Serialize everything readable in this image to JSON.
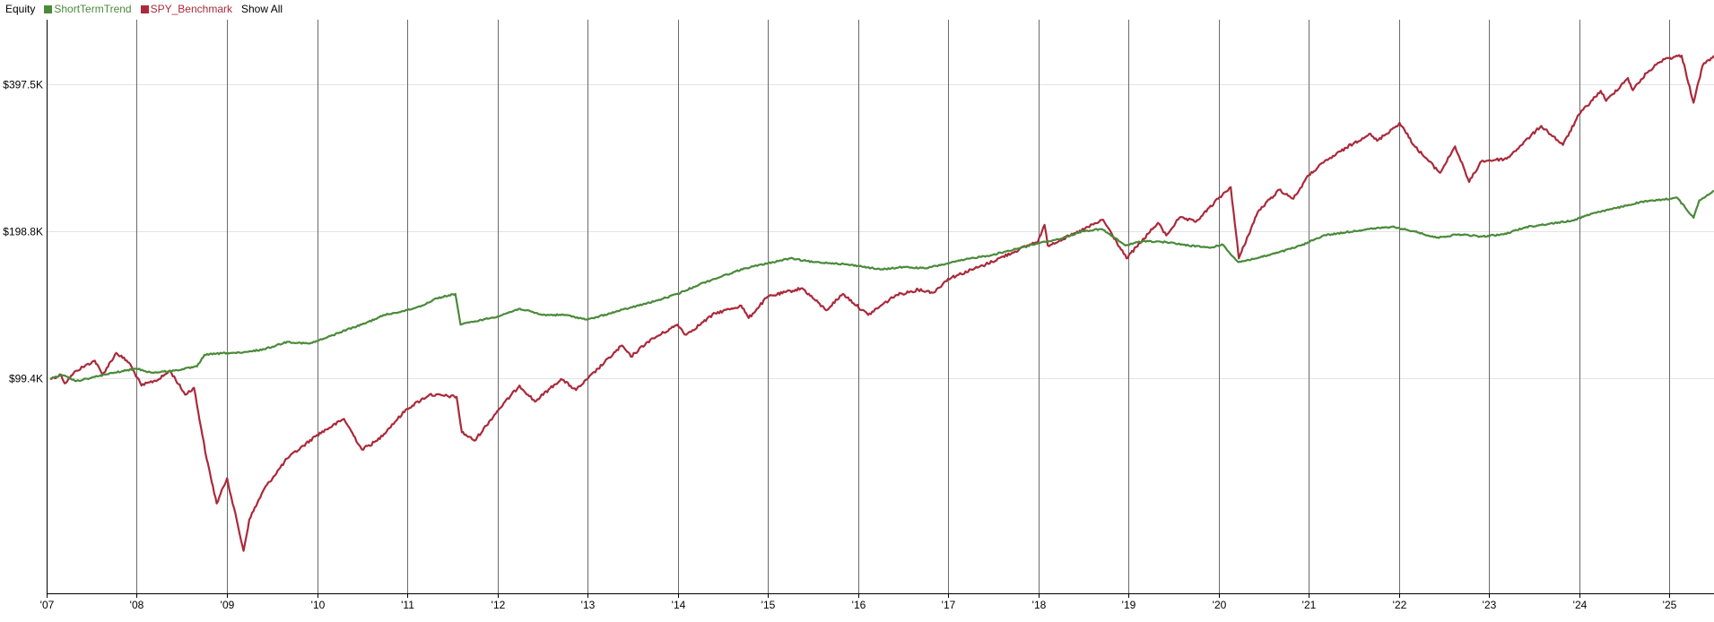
{
  "header": {
    "equity_label": "Equity",
    "show_all_label": "Show All"
  },
  "chart_data": {
    "type": "line",
    "x_scale": "time",
    "y_scale": "log",
    "xlim": [
      "2007-01-01",
      "2025-06-30"
    ],
    "ylim": [
      36000,
      540000
    ],
    "grid": {
      "vertical": true,
      "horizontal": true
    },
    "legend_position": "top-left",
    "x_tick_values": [
      "2007-01-01",
      "2008-01-01",
      "2009-01-01",
      "2010-01-01",
      "2011-01-01",
      "2012-01-01",
      "2013-01-01",
      "2014-01-01",
      "2015-01-01",
      "2016-01-01",
      "2017-01-01",
      "2018-01-01",
      "2019-01-01",
      "2020-01-01",
      "2021-01-01",
      "2022-01-01",
      "2023-01-01",
      "2024-01-01",
      "2025-01-01"
    ],
    "x_tick_labels": [
      "'07",
      "'08",
      "'09",
      "'10",
      "'11",
      "'12",
      "'13",
      "'14",
      "'15",
      "'16",
      "'17",
      "'18",
      "'19",
      "'20",
      "'21",
      "'22",
      "'23",
      "'24",
      "'25"
    ],
    "y_tick_values": [
      99400,
      198800,
      397500
    ],
    "y_tick_labels": [
      "$99.4K",
      "$198.8K",
      "$397.5K"
    ],
    "series": [
      {
        "name": "ShortTermTrend",
        "color": "#4a8a3a",
        "points": [
          [
            "2007-01-15",
            99000
          ],
          [
            "2007-03-01",
            101000
          ],
          [
            "2007-05-01",
            98000
          ],
          [
            "2007-07-15",
            100000
          ],
          [
            "2007-10-01",
            102000
          ],
          [
            "2008-01-01",
            104000
          ],
          [
            "2008-03-01",
            102000
          ],
          [
            "2008-06-01",
            103000
          ],
          [
            "2008-09-01",
            105000
          ],
          [
            "2008-10-01",
            111000
          ],
          [
            "2009-01-01",
            112000
          ],
          [
            "2009-03-01",
            112000
          ],
          [
            "2009-06-01",
            114000
          ],
          [
            "2009-09-01",
            118000
          ],
          [
            "2009-12-01",
            117000
          ],
          [
            "2010-02-01",
            120000
          ],
          [
            "2010-05-01",
            125000
          ],
          [
            "2010-07-01",
            128000
          ],
          [
            "2010-10-01",
            134000
          ],
          [
            "2011-01-01",
            137000
          ],
          [
            "2011-03-01",
            140000
          ],
          [
            "2011-05-01",
            145000
          ],
          [
            "2011-07-15",
            148000
          ],
          [
            "2011-08-05",
            128000
          ],
          [
            "2011-10-01",
            130000
          ],
          [
            "2012-01-01",
            133000
          ],
          [
            "2012-04-01",
            138000
          ],
          [
            "2012-07-01",
            134000
          ],
          [
            "2012-10-01",
            134000
          ],
          [
            "2013-01-01",
            131000
          ],
          [
            "2013-04-01",
            135000
          ],
          [
            "2013-07-01",
            139000
          ],
          [
            "2013-10-01",
            143000
          ],
          [
            "2014-01-01",
            148000
          ],
          [
            "2014-04-01",
            155000
          ],
          [
            "2014-07-01",
            161000
          ],
          [
            "2014-10-01",
            167000
          ],
          [
            "2015-01-01",
            171000
          ],
          [
            "2015-04-01",
            175000
          ],
          [
            "2015-07-01",
            172000
          ],
          [
            "2015-10-01",
            171000
          ],
          [
            "2016-01-01",
            169000
          ],
          [
            "2016-04-01",
            166000
          ],
          [
            "2016-07-01",
            168000
          ],
          [
            "2016-10-01",
            167000
          ],
          [
            "2017-01-01",
            171000
          ],
          [
            "2017-04-01",
            175000
          ],
          [
            "2017-07-01",
            178000
          ],
          [
            "2017-10-01",
            183000
          ],
          [
            "2018-01-01",
            188000
          ],
          [
            "2018-04-01",
            192000
          ],
          [
            "2018-07-01",
            199000
          ],
          [
            "2018-09-15",
            201000
          ],
          [
            "2018-12-20",
            186000
          ],
          [
            "2019-03-01",
            190000
          ],
          [
            "2019-06-01",
            189000
          ],
          [
            "2019-09-01",
            186000
          ],
          [
            "2019-12-01",
            184000
          ],
          [
            "2020-01-15",
            187000
          ],
          [
            "2020-03-20",
            172000
          ],
          [
            "2020-06-01",
            175000
          ],
          [
            "2020-09-01",
            180000
          ],
          [
            "2020-12-01",
            186000
          ],
          [
            "2021-03-01",
            195000
          ],
          [
            "2021-06-01",
            198000
          ],
          [
            "2021-09-01",
            201000
          ],
          [
            "2021-12-01",
            203000
          ],
          [
            "2022-03-01",
            199000
          ],
          [
            "2022-06-01",
            193000
          ],
          [
            "2022-09-01",
            196000
          ],
          [
            "2022-12-01",
            194000
          ],
          [
            "2023-03-01",
            196000
          ],
          [
            "2023-06-01",
            203000
          ],
          [
            "2023-09-01",
            206000
          ],
          [
            "2023-12-01",
            209000
          ],
          [
            "2024-03-01",
            217000
          ],
          [
            "2024-06-01",
            222000
          ],
          [
            "2024-09-01",
            228000
          ],
          [
            "2024-12-01",
            231000
          ],
          [
            "2025-02-01",
            233000
          ],
          [
            "2025-04-08",
            212000
          ],
          [
            "2025-05-01",
            230000
          ],
          [
            "2025-06-30",
            241000
          ]
        ]
      },
      {
        "name": "SPY_Benchmark",
        "color": "#a92a3a",
        "points": [
          [
            "2007-01-15",
            99000
          ],
          [
            "2007-03-01",
            101000
          ],
          [
            "2007-03-15",
            97000
          ],
          [
            "2007-05-01",
            103000
          ],
          [
            "2007-07-15",
            108000
          ],
          [
            "2007-08-15",
            101000
          ],
          [
            "2007-10-10",
            112000
          ],
          [
            "2007-12-01",
            107000
          ],
          [
            "2008-01-20",
            96000
          ],
          [
            "2008-04-01",
            99000
          ],
          [
            "2008-05-15",
            103000
          ],
          [
            "2008-07-15",
            92000
          ],
          [
            "2008-08-20",
            95000
          ],
          [
            "2008-10-10",
            68000
          ],
          [
            "2008-11-20",
            55000
          ],
          [
            "2009-01-01",
            62000
          ],
          [
            "2009-03-09",
            44000
          ],
          [
            "2009-04-01",
            51000
          ],
          [
            "2009-06-01",
            59000
          ],
          [
            "2009-09-01",
            68000
          ],
          [
            "2009-12-31",
            76000
          ],
          [
            "2010-04-20",
            82000
          ],
          [
            "2010-07-01",
            71000
          ],
          [
            "2010-09-01",
            74000
          ],
          [
            "2010-12-31",
            86000
          ],
          [
            "2011-04-01",
            92000
          ],
          [
            "2011-07-20",
            91000
          ],
          [
            "2011-08-10",
            77000
          ],
          [
            "2011-10-01",
            74000
          ],
          [
            "2011-12-31",
            85000
          ],
          [
            "2012-03-31",
            96000
          ],
          [
            "2012-06-01",
            89000
          ],
          [
            "2012-09-15",
            99000
          ],
          [
            "2012-11-15",
            94000
          ],
          [
            "2012-12-31",
            99000
          ],
          [
            "2013-05-20",
            116000
          ],
          [
            "2013-06-25",
            110000
          ],
          [
            "2013-09-01",
            118000
          ],
          [
            "2013-12-31",
            128000
          ],
          [
            "2014-02-03",
            122000
          ],
          [
            "2014-06-01",
            135000
          ],
          [
            "2014-09-15",
            140000
          ],
          [
            "2014-10-15",
            132000
          ],
          [
            "2014-12-31",
            146000
          ],
          [
            "2015-05-20",
            152000
          ],
          [
            "2015-08-25",
            137000
          ],
          [
            "2015-11-01",
            148000
          ],
          [
            "2016-02-11",
            134000
          ],
          [
            "2016-06-01",
            147000
          ],
          [
            "2016-09-01",
            151000
          ],
          [
            "2016-11-04",
            149000
          ],
          [
            "2016-12-31",
            159000
          ],
          [
            "2017-06-01",
            170000
          ],
          [
            "2017-12-31",
            190000
          ],
          [
            "2018-01-26",
            205000
          ],
          [
            "2018-02-08",
            186000
          ],
          [
            "2018-06-01",
            197000
          ],
          [
            "2018-09-20",
            210000
          ],
          [
            "2018-12-24",
            175000
          ],
          [
            "2019-04-30",
            207000
          ],
          [
            "2019-06-03",
            195000
          ],
          [
            "2019-07-26",
            212000
          ],
          [
            "2019-10-01",
            208000
          ],
          [
            "2019-12-31",
            232000
          ],
          [
            "2020-02-19",
            245000
          ],
          [
            "2020-03-23",
            175000
          ],
          [
            "2020-06-08",
            218000
          ],
          [
            "2020-09-02",
            242000
          ],
          [
            "2020-10-30",
            232000
          ],
          [
            "2020-12-31",
            259000
          ],
          [
            "2021-03-01",
            275000
          ],
          [
            "2021-06-01",
            295000
          ],
          [
            "2021-09-02",
            315000
          ],
          [
            "2021-10-04",
            305000
          ],
          [
            "2021-12-31",
            330000
          ],
          [
            "2022-01-03",
            332000
          ],
          [
            "2022-03-08",
            296000
          ],
          [
            "2022-06-16",
            262000
          ],
          [
            "2022-08-16",
            297000
          ],
          [
            "2022-10-12",
            251000
          ],
          [
            "2022-12-01",
            277000
          ],
          [
            "2023-03-13",
            280000
          ],
          [
            "2023-07-31",
            327000
          ],
          [
            "2023-10-27",
            299000
          ],
          [
            "2023-12-31",
            345000
          ],
          [
            "2024-03-28",
            386000
          ],
          [
            "2024-04-19",
            368000
          ],
          [
            "2024-07-16",
            410000
          ],
          [
            "2024-08-05",
            387000
          ],
          [
            "2024-09-30",
            420000
          ],
          [
            "2024-12-06",
            448000
          ],
          [
            "2025-02-19",
            456000
          ],
          [
            "2025-04-08",
            365000
          ],
          [
            "2025-05-15",
            435000
          ],
          [
            "2025-06-30",
            456000
          ]
        ]
      }
    ]
  }
}
